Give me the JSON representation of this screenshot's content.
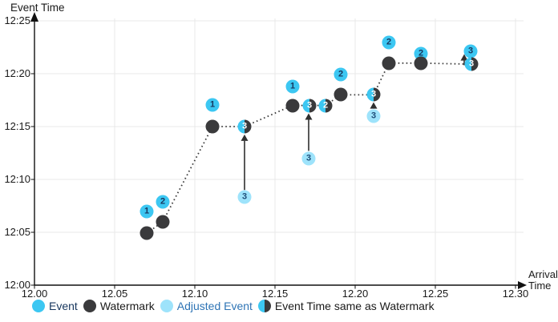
{
  "chart": {
    "y_axis_title": "Event Time",
    "x_axis_title_line1": "Arrival",
    "x_axis_title_line2": "Time",
    "y_ticks": [
      {
        "label": "12:25",
        "m": 25
      },
      {
        "label": "12:20",
        "m": 20
      },
      {
        "label": "12:15",
        "m": 15
      },
      {
        "label": "12:10",
        "m": 10
      },
      {
        "label": "12:05",
        "m": 5
      },
      {
        "label": "12:00",
        "m": 0
      }
    ],
    "x_ticks": [
      {
        "label": "12.00",
        "m": 0
      },
      {
        "label": "12.05",
        "m": 5
      },
      {
        "label": "12.10",
        "m": 10
      },
      {
        "label": "12.15",
        "m": 15
      },
      {
        "label": "12.20",
        "m": 20
      },
      {
        "label": "12.25",
        "m": 25
      },
      {
        "label": "12.30",
        "m": 30
      }
    ],
    "legend": [
      {
        "id": "event",
        "label": "Event",
        "marker": "event",
        "label_color": "#17365d"
      },
      {
        "id": "watermark",
        "label": "Watermark",
        "marker": "watermark",
        "label_color": "#1a1a1a"
      },
      {
        "id": "adjusted-event",
        "label": "Adjusted Event",
        "marker": "adjusted",
        "label_color": "#2e74b5"
      },
      {
        "id": "same-as-watermark",
        "label": "Event Time same as Watermark",
        "marker": "half",
        "label_color": "#1a1a1a"
      }
    ],
    "colors": {
      "event": "#3cc7f2",
      "watermark": "#3a3a3c",
      "adjusted_event": "#9ee3fb",
      "half_left": "#3cc7f2",
      "half_right": "#3a3a3c",
      "dotted_line": "#3c3c3c",
      "arrow": "#2f2f2f",
      "grid": "#e8e8e8",
      "axis": "#111111",
      "event_number": "#17365d",
      "adjusted_number": "#1f4e79",
      "half_number": "#ffffff"
    }
  },
  "chart_data": {
    "type": "scatter",
    "title": "Watermark illustration: event time vs arrival time",
    "xlabel": "Arrival Time",
    "ylabel": "Event Time",
    "x_axis": {
      "unit": "minutes after 12:00",
      "range": [
        0,
        30
      ]
    },
    "y_axis": {
      "unit": "minutes after 12:00",
      "range": [
        0,
        25
      ]
    },
    "grid": true,
    "legend_position": "bottom",
    "events": [
      {
        "label": "1",
        "arrival_m": 7.0,
        "event_time_m": 7.0,
        "arrival": "12:07",
        "event_time": "12:07"
      },
      {
        "label": "2",
        "arrival_m": 8.0,
        "event_time_m": 7.9,
        "arrival": "12:08",
        "event_time": "12:08"
      },
      {
        "label": "1",
        "arrival_m": 11.1,
        "event_time_m": 17.05,
        "arrival": "12:11",
        "event_time": "12:17"
      },
      {
        "label": "1",
        "arrival_m": 16.1,
        "event_time_m": 18.8,
        "arrival": "12:16",
        "event_time": "12:19"
      },
      {
        "label": "2",
        "arrival_m": 19.1,
        "event_time_m": 19.9,
        "arrival": "12:19",
        "event_time": "12:20"
      },
      {
        "label": "2",
        "arrival_m": 22.1,
        "event_time_m": 22.95,
        "arrival": "12:22",
        "event_time": "12:23"
      },
      {
        "label": "2",
        "arrival_m": 24.1,
        "event_time_m": 21.9,
        "arrival": "12:24",
        "event_time": "12:22"
      },
      {
        "label": "3",
        "arrival_m": 27.2,
        "event_time_m": 22.1,
        "arrival": "12:27",
        "event_time": "12:22"
      }
    ],
    "watermarks": [
      {
        "arrival_m": 7.0,
        "value_m": 4.9,
        "value": "12:05"
      },
      {
        "arrival_m": 8.0,
        "value_m": 6.0,
        "value": "12:06"
      },
      {
        "arrival_m": 11.1,
        "value_m": 15.0,
        "value": "12:15"
      },
      {
        "arrival_m": 16.1,
        "value_m": 17.0,
        "value": "12:17"
      },
      {
        "arrival_m": 19.1,
        "value_m": 18.0,
        "value": "12:18"
      },
      {
        "arrival_m": 22.1,
        "value_m": 21.0,
        "value": "12:21"
      },
      {
        "arrival_m": 24.1,
        "value_m": 21.0,
        "value": "12:21"
      }
    ],
    "same_as_watermark": [
      {
        "label": "3",
        "arrival_m": 13.1,
        "value_m": 15.0,
        "value": "12:15"
      },
      {
        "label": "3",
        "arrival_m": 17.15,
        "value_m": 17.0,
        "value": "12:17"
      },
      {
        "label": "2",
        "arrival_m": 18.15,
        "value_m": 17.0,
        "value": "12:17"
      },
      {
        "label": "3",
        "arrival_m": 21.15,
        "value_m": 18.0,
        "value": "12:18"
      },
      {
        "label": "3",
        "arrival_m": 27.25,
        "value_m": 20.9,
        "value": "12:21"
      }
    ],
    "adjusted_events": [
      {
        "label": "3",
        "arrival_m": 13.1,
        "original_time_m": 8.3,
        "original_time": "12:08",
        "adjusted_to": "12:15"
      },
      {
        "label": "3",
        "arrival_m": 17.1,
        "original_time_m": 12.0,
        "original_time": "12:12",
        "adjusted_to": "12:17"
      },
      {
        "label": "3",
        "arrival_m": 21.15,
        "original_time_m": 16.0,
        "original_time": "12:16",
        "adjusted_to": "12:18"
      }
    ],
    "watermark_line": [
      [
        7.0,
        4.9
      ],
      [
        8.0,
        6.0
      ],
      [
        11.1,
        15.0
      ],
      [
        13.1,
        15.0
      ],
      [
        16.1,
        17.0
      ],
      [
        17.15,
        17.0
      ],
      [
        18.15,
        17.0
      ],
      [
        19.1,
        18.0
      ],
      [
        21.15,
        18.0
      ],
      [
        22.1,
        21.0
      ],
      [
        24.1,
        21.0
      ],
      [
        27.25,
        20.9
      ]
    ],
    "arrows": [
      {
        "x_m": 13.1,
        "from_m": 9.0,
        "to_m": 14.25
      },
      {
        "x_m": 17.1,
        "from_m": 12.7,
        "to_m": 16.25
      },
      {
        "x_m": 21.15,
        "from_m": 16.7,
        "to_m": 17.3
      },
      {
        "x_m": 26.8,
        "from_m": 20.8,
        "to_m": 21.85
      }
    ]
  }
}
